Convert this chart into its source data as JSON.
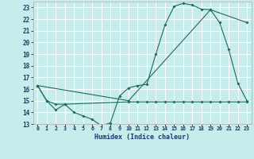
{
  "xlabel": "Humidex (Indice chaleur)",
  "bg_color": "#c8ecec",
  "grid_color": "#ffffff",
  "line_color": "#1a6b5a",
  "xlim": [
    -0.5,
    23.5
  ],
  "ylim": [
    13,
    23.5
  ],
  "yticks": [
    13,
    14,
    15,
    16,
    17,
    18,
    19,
    20,
    21,
    22,
    23
  ],
  "xticks": [
    0,
    1,
    2,
    3,
    4,
    5,
    6,
    7,
    8,
    9,
    10,
    11,
    12,
    13,
    14,
    15,
    16,
    17,
    18,
    19,
    20,
    21,
    22,
    23
  ],
  "series1_x": [
    0,
    1,
    2,
    3,
    4,
    5,
    6,
    7,
    8,
    9,
    10,
    11,
    12,
    13,
    14,
    15,
    16,
    17,
    18,
    19,
    20,
    21,
    22,
    23
  ],
  "series1_y": [
    16.3,
    15.0,
    14.2,
    14.7,
    14.0,
    13.7,
    13.4,
    12.85,
    13.1,
    15.4,
    16.1,
    16.3,
    16.4,
    19.0,
    21.5,
    23.1,
    23.35,
    23.2,
    22.85,
    22.8,
    21.7,
    19.4,
    16.5,
    15.0
  ],
  "series2_x": [
    0,
    1,
    2,
    3,
    10,
    11,
    12,
    13,
    14,
    15,
    16,
    17,
    18,
    19,
    20,
    21,
    22,
    23
  ],
  "series2_y": [
    16.3,
    15.0,
    14.7,
    14.7,
    14.9,
    14.9,
    14.9,
    14.9,
    14.9,
    14.9,
    14.9,
    14.9,
    14.9,
    14.9,
    14.9,
    14.9,
    14.9,
    14.9
  ],
  "series3_x": [
    0,
    10,
    19,
    23
  ],
  "series3_y": [
    16.3,
    15.0,
    22.8,
    21.7
  ]
}
